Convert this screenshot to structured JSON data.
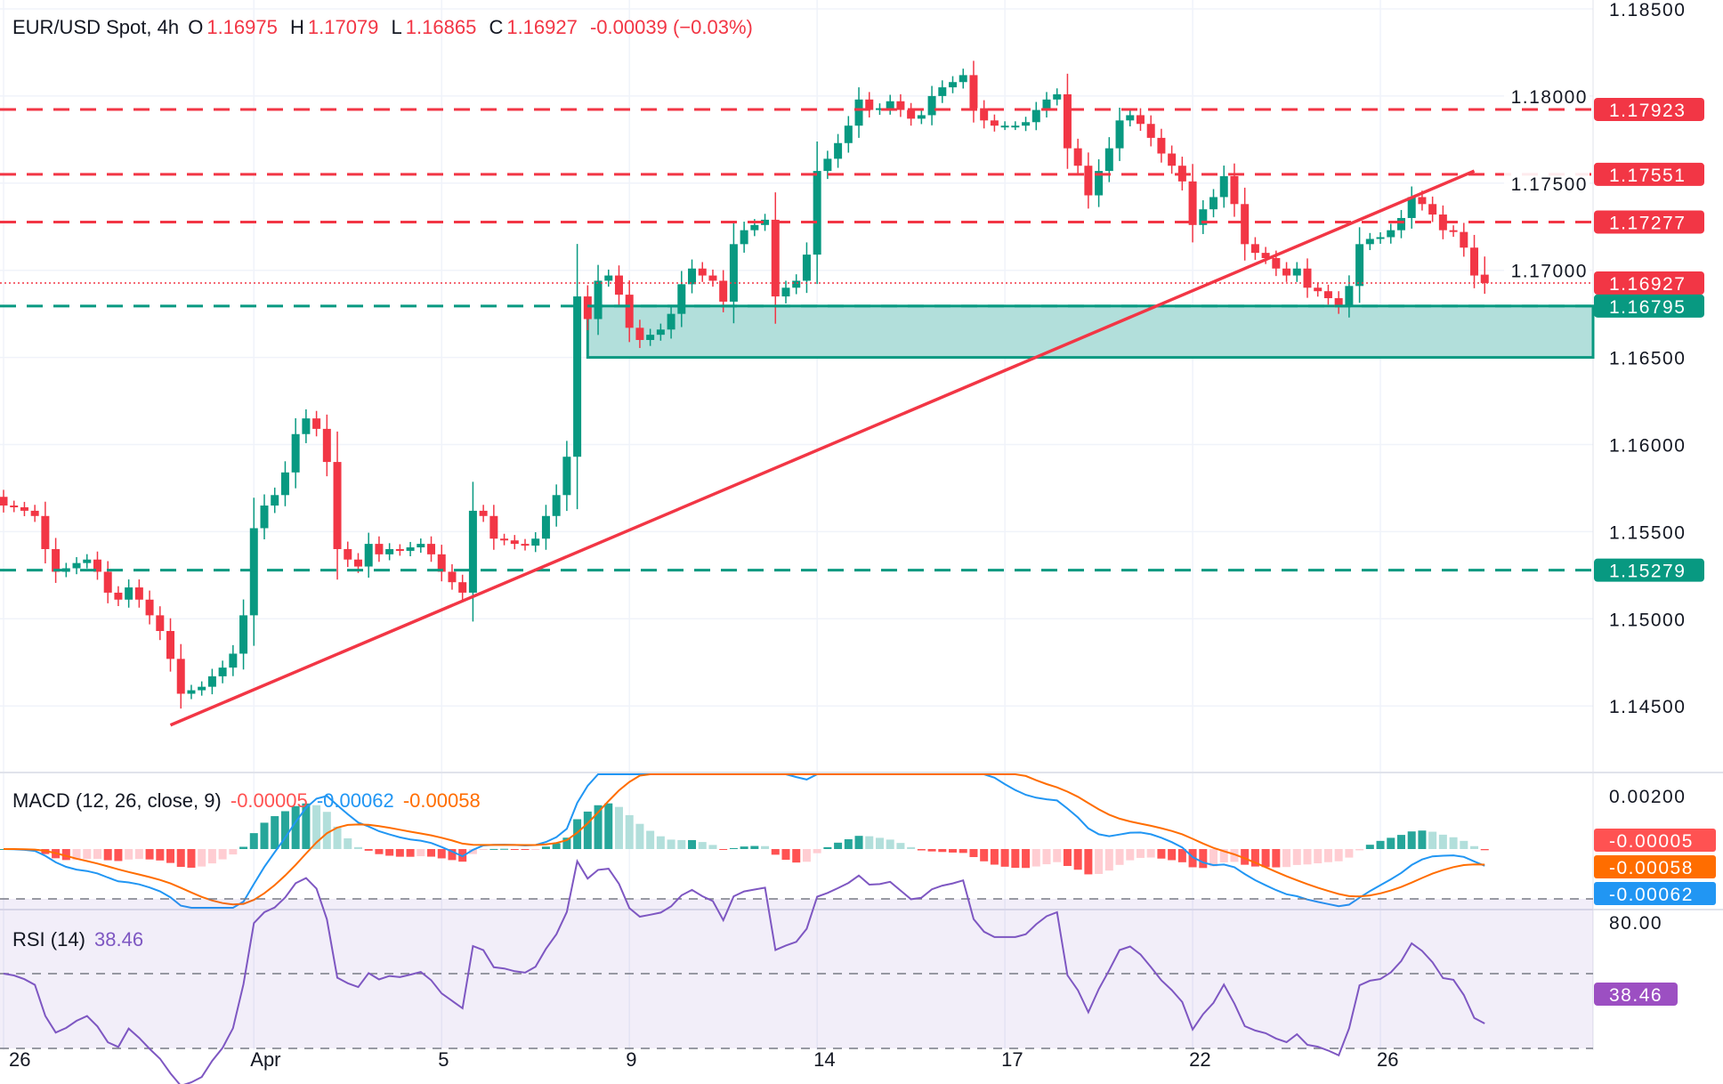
{
  "header": {
    "symbol": "EUR/USD Spot, 4h",
    "open_label": "O",
    "open": "1.16975",
    "high_label": "H",
    "high": "1.17079",
    "low_label": "L",
    "low": "1.16865",
    "close_label": "C",
    "close": "1.16927",
    "change": "-0.00039 (−0.03%)"
  },
  "macd_legend": {
    "title": "MACD (12, 26, close, 9)",
    "hist": "-0.00005",
    "macd": "-0.00062",
    "signal": "-0.00058"
  },
  "rsi_legend": {
    "title": "RSI (14)",
    "value": "38.46"
  },
  "colors": {
    "up": "#089981",
    "down": "#f23645",
    "zone": "#b2dfdb",
    "macd": "#2196f3",
    "signal": "#ff6d00",
    "rsi": "#7e57c2"
  },
  "chart_data": {
    "type": "candlestick",
    "price_axis": {
      "ticks": [
        "1.18500",
        "1.18000",
        "1.17500",
        "1.17000",
        "1.16500",
        "1.16000",
        "1.15500",
        "1.15000",
        "1.14500"
      ],
      "range": [
        1.1415,
        1.1855
      ]
    },
    "time_axis": {
      "ticks": [
        {
          "label": "26",
          "index": 0
        },
        {
          "label": "Apr",
          "index": 24
        },
        {
          "label": "5",
          "index": 42
        },
        {
          "label": "9",
          "index": 60
        },
        {
          "label": "14",
          "index": 78
        },
        {
          "label": "17",
          "index": 96
        },
        {
          "label": "22",
          "index": 114
        },
        {
          "label": "26",
          "index": 132
        }
      ]
    },
    "close": [
      1.1565,
      1.1564,
      1.1562,
      1.1559,
      1.154,
      1.1527,
      1.1529,
      1.1532,
      1.1534,
      1.1527,
      1.1515,
      1.1511,
      1.1518,
      1.1511,
      1.1502,
      1.1493,
      1.1477,
      1.1457,
      1.1459,
      1.1461,
      1.1467,
      1.1472,
      1.148,
      1.1502,
      1.1552,
      1.1565,
      1.1571,
      1.1584,
      1.1606,
      1.1615,
      1.1609,
      1.159,
      1.154,
      1.1534,
      1.153,
      1.1543,
      1.1537,
      1.154,
      1.1539,
      1.1541,
      1.1543,
      1.1537,
      1.1527,
      1.1521,
      1.1515,
      1.1562,
      1.1559,
      1.1546,
      1.1545,
      1.1543,
      1.1542,
      1.1546,
      1.1559,
      1.1571,
      1.1593,
      1.1685,
      1.1672,
      1.1694,
      1.1697,
      1.1686,
      1.1667,
      1.166,
      1.1663,
      1.1666,
      1.1675,
      1.1692,
      1.1701,
      1.1697,
      1.1694,
      1.1682,
      1.1715,
      1.1723,
      1.1726,
      1.1729,
      1.1685,
      1.169,
      1.1694,
      1.1709,
      1.1757,
      1.1764,
      1.1773,
      1.1783,
      1.1798,
      1.1792,
      1.1793,
      1.1797,
      1.1792,
      1.1787,
      1.1789,
      1.18,
      1.1805,
      1.1808,
      1.1812,
      1.1793,
      1.1786,
      1.1783,
      1.1783,
      1.1783,
      1.1785,
      1.1792,
      1.1798,
      1.1801,
      1.177,
      1.176,
      1.1743,
      1.1757,
      1.177,
      1.1786,
      1.1789,
      1.1784,
      1.1776,
      1.1767,
      1.176,
      1.1751,
      1.1726,
      1.1735,
      1.1742,
      1.1754,
      1.1738,
      1.1715,
      1.171,
      1.1707,
      1.1701,
      1.1697,
      1.1701,
      1.169,
      1.1688,
      1.1684,
      1.1679,
      1.1691,
      1.1715,
      1.1718,
      1.1719,
      1.1723,
      1.173,
      1.1742,
      1.1738,
      1.1732,
      1.1723,
      1.1722,
      1.1713,
      1.1697,
      1.16927
    ],
    "first_open": 1.157,
    "last_candle": {
      "open": 1.16975,
      "high": 1.17079,
      "low": 1.16865,
      "close": 1.16927
    },
    "levels": [
      {
        "price": 1.17923,
        "label": "1.17923",
        "color": "#f23645",
        "style": "dashed"
      },
      {
        "price": 1.17551,
        "label": "1.17551",
        "color": "#f23645",
        "style": "dashed"
      },
      {
        "price": 1.17277,
        "label": "1.17277",
        "color": "#f23645",
        "style": "dashed"
      },
      {
        "price": 1.16927,
        "label": "1.16927",
        "color": "#f23645",
        "style": "dotted"
      },
      {
        "price": 1.16795,
        "label": "1.16795",
        "color": "#089981",
        "style": "dashed"
      },
      {
        "price": 1.15279,
        "label": "1.15279",
        "color": "#089981",
        "style": "dashed"
      }
    ],
    "support_zone": {
      "top": 1.16795,
      "bottom": 1.165,
      "start_index": 56
    },
    "trendline": {
      "start": {
        "index": 16,
        "price": 1.1439
      },
      "end": {
        "index": 141,
        "price": 1.1757
      }
    },
    "macd_axis": {
      "ticks": [
        "0.00200"
      ]
    },
    "macd_tags": [
      {
        "label": "-0.00005",
        "color": "#ff5252"
      },
      {
        "label": "-0.00058",
        "color": "#ff6d00"
      },
      {
        "label": "-0.00062",
        "color": "#2196f3"
      }
    ],
    "rsi_axis": {
      "ticks": [
        "80.00"
      ],
      "bands": [
        70,
        50,
        30
      ]
    },
    "rsi_tag": "38.46"
  }
}
